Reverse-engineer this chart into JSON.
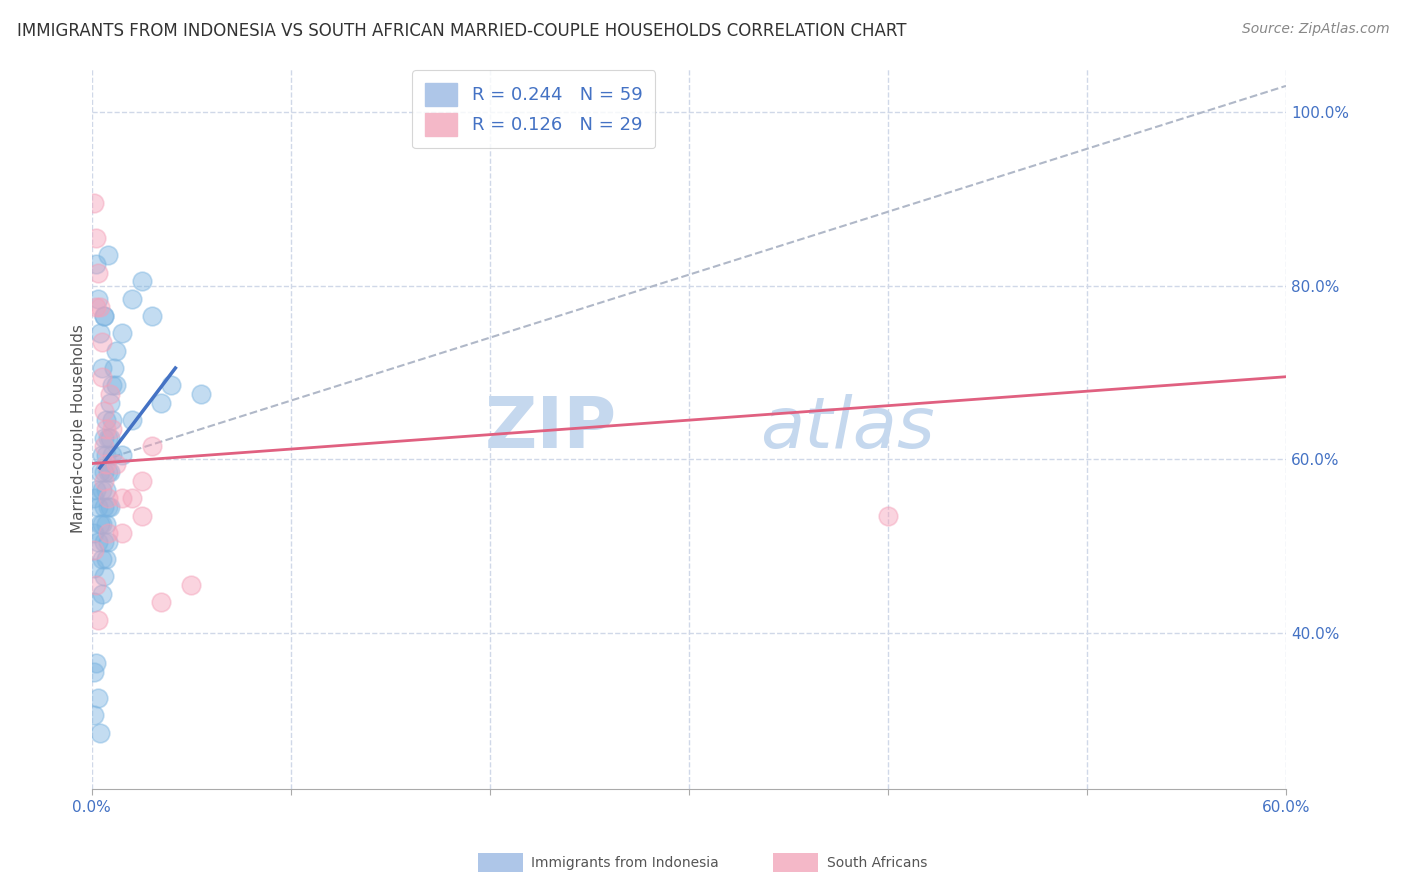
{
  "title": "IMMIGRANTS FROM INDONESIA VS SOUTH AFRICAN MARRIED-COUPLE HOUSEHOLDS CORRELATION CHART",
  "source": "Source: ZipAtlas.com",
  "ylabel": "Married-couple Households",
  "xlim": [
    0.0,
    0.6
  ],
  "ylim": [
    0.22,
    1.05
  ],
  "x_ticks": [
    0.0,
    0.1,
    0.2,
    0.3,
    0.4,
    0.5,
    0.6
  ],
  "x_tick_labels": [
    "0.0%",
    "",
    "",
    "",
    "",
    "",
    "60.0%"
  ],
  "y_ticks": [
    0.4,
    0.6,
    0.8,
    1.0
  ],
  "y_tick_labels": [
    "40.0%",
    "60.0%",
    "80.0%",
    "100.0%"
  ],
  "legend_r1": "R = 0.244   N = 59",
  "legend_r2": "R = 0.126   N = 29",
  "watermark_zip": "ZIP",
  "watermark_atlas": "atlas",
  "blue_scatter": [
    [
      0.002,
      0.565
    ],
    [
      0.003,
      0.545
    ],
    [
      0.003,
      0.505
    ],
    [
      0.004,
      0.585
    ],
    [
      0.004,
      0.525
    ],
    [
      0.005,
      0.605
    ],
    [
      0.005,
      0.565
    ],
    [
      0.005,
      0.525
    ],
    [
      0.005,
      0.485
    ],
    [
      0.005,
      0.445
    ],
    [
      0.006,
      0.625
    ],
    [
      0.006,
      0.585
    ],
    [
      0.006,
      0.545
    ],
    [
      0.006,
      0.505
    ],
    [
      0.006,
      0.465
    ],
    [
      0.007,
      0.645
    ],
    [
      0.007,
      0.605
    ],
    [
      0.007,
      0.565
    ],
    [
      0.007,
      0.525
    ],
    [
      0.007,
      0.485
    ],
    [
      0.008,
      0.625
    ],
    [
      0.008,
      0.585
    ],
    [
      0.008,
      0.545
    ],
    [
      0.008,
      0.505
    ],
    [
      0.009,
      0.665
    ],
    [
      0.009,
      0.625
    ],
    [
      0.009,
      0.585
    ],
    [
      0.009,
      0.545
    ],
    [
      0.01,
      0.685
    ],
    [
      0.01,
      0.645
    ],
    [
      0.01,
      0.605
    ],
    [
      0.011,
      0.705
    ],
    [
      0.012,
      0.725
    ],
    [
      0.012,
      0.685
    ],
    [
      0.015,
      0.745
    ],
    [
      0.015,
      0.605
    ],
    [
      0.02,
      0.785
    ],
    [
      0.02,
      0.645
    ],
    [
      0.025,
      0.805
    ],
    [
      0.03,
      0.765
    ],
    [
      0.035,
      0.665
    ],
    [
      0.04,
      0.685
    ],
    [
      0.002,
      0.825
    ],
    [
      0.003,
      0.785
    ],
    [
      0.004,
      0.745
    ],
    [
      0.005,
      0.705
    ],
    [
      0.006,
      0.765
    ],
    [
      0.001,
      0.555
    ],
    [
      0.001,
      0.515
    ],
    [
      0.001,
      0.475
    ],
    [
      0.001,
      0.435
    ],
    [
      0.001,
      0.355
    ],
    [
      0.001,
      0.305
    ],
    [
      0.002,
      0.365
    ],
    [
      0.003,
      0.325
    ],
    [
      0.004,
      0.285
    ],
    [
      0.006,
      0.765
    ],
    [
      0.008,
      0.835
    ],
    [
      0.055,
      0.675
    ]
  ],
  "pink_scatter": [
    [
      0.001,
      0.895
    ],
    [
      0.002,
      0.855
    ],
    [
      0.002,
      0.775
    ],
    [
      0.003,
      0.815
    ],
    [
      0.004,
      0.775
    ],
    [
      0.005,
      0.735
    ],
    [
      0.005,
      0.695
    ],
    [
      0.006,
      0.655
    ],
    [
      0.006,
      0.615
    ],
    [
      0.006,
      0.575
    ],
    [
      0.007,
      0.635
    ],
    [
      0.007,
      0.595
    ],
    [
      0.008,
      0.555
    ],
    [
      0.008,
      0.515
    ],
    [
      0.009,
      0.675
    ],
    [
      0.01,
      0.635
    ],
    [
      0.012,
      0.595
    ],
    [
      0.015,
      0.555
    ],
    [
      0.015,
      0.515
    ],
    [
      0.02,
      0.555
    ],
    [
      0.025,
      0.575
    ],
    [
      0.025,
      0.535
    ],
    [
      0.03,
      0.615
    ],
    [
      0.035,
      0.435
    ],
    [
      0.05,
      0.455
    ],
    [
      0.4,
      0.535
    ],
    [
      0.001,
      0.495
    ],
    [
      0.002,
      0.455
    ],
    [
      0.003,
      0.415
    ]
  ],
  "blue_line": [
    [
      0.004,
      0.59
    ],
    [
      0.042,
      0.705
    ]
  ],
  "pink_line": [
    [
      0.0,
      0.595
    ],
    [
      0.6,
      0.695
    ]
  ],
  "gray_dash_line": [
    [
      0.0,
      0.595
    ],
    [
      0.6,
      1.03
    ]
  ],
  "background_color": "#ffffff",
  "grid_color": "#d0d8e8",
  "blue_color": "#7ab3e0",
  "pink_color": "#f4a0b8",
  "blue_line_color": "#4472c4",
  "pink_line_color": "#e06080",
  "gray_dash_color": "#b0b8c8",
  "title_fontsize": 12,
  "axis_label_fontsize": 11,
  "tick_fontsize": 11,
  "legend_fontsize": 13,
  "source_fontsize": 10
}
